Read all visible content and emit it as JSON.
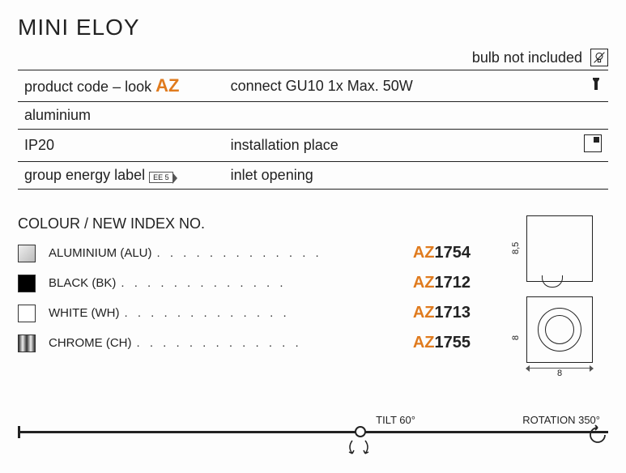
{
  "title": "MINI ELOY",
  "top_note": "bulb not included",
  "spec_rows": [
    {
      "left_pre": "product code – look ",
      "left_az": "AZ",
      "right": "connect GU10 1x Max. 50W",
      "icon": "bulb"
    },
    {
      "left_pre": "aluminium",
      "left_az": "",
      "right": "",
      "icon": ""
    },
    {
      "left_pre": "IP20",
      "left_az": "",
      "right": "installation place",
      "icon": "corner"
    },
    {
      "left_pre": "group energy label",
      "left_az": "",
      "left_badge": "EE 5",
      "right": "inlet opening",
      "icon": ""
    }
  ],
  "colours_heading": "COLOUR / NEW INDEX NO.",
  "colours": [
    {
      "label": "ALUMINIUM (ALU)",
      "swatch_bg": "linear-gradient(135deg,#eee,#bbb)",
      "prefix": "AZ",
      "num": "1754"
    },
    {
      "label": "BLACK (BK)",
      "swatch_bg": "#000000",
      "prefix": "AZ",
      "num": "1712"
    },
    {
      "label": "WHITE (WH)",
      "swatch_bg": "#ffffff",
      "prefix": "AZ",
      "num": "1713"
    },
    {
      "label": "CHROME (CH)",
      "swatch_bg": "linear-gradient(90deg,#333,#eee,#333,#eee,#333)",
      "prefix": "AZ",
      "num": "1755"
    }
  ],
  "dimensions": {
    "height": "8,5",
    "depth": "8",
    "width": "8"
  },
  "footer": {
    "tilt": "TILT 60°",
    "rotation": "ROTATION 350°"
  },
  "colors": {
    "accent": "#e07b1e",
    "text": "#222222"
  }
}
